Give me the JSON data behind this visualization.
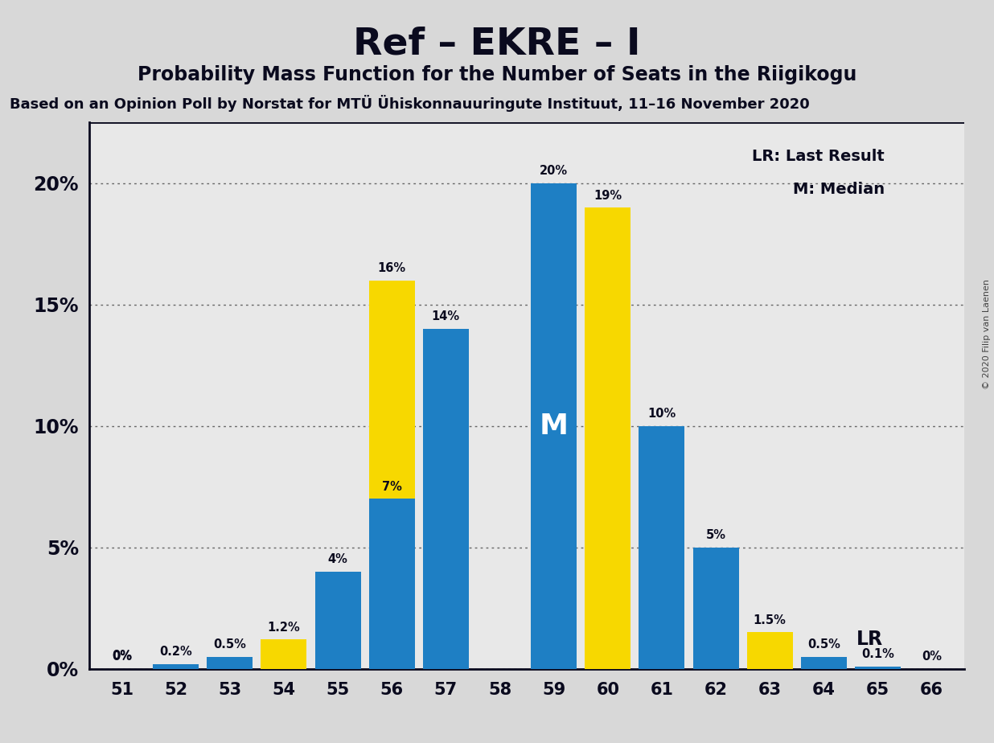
{
  "title": "Ref – EKRE – I",
  "subtitle": "Probability Mass Function for the Number of Seats in the Riigikogu",
  "source": "Based on an Opinion Poll by Norstat for MTÜ Ühiskonnauuringute Instituut, 11–16 November 2020",
  "copyright": "© 2020 Filip van Laenen",
  "seats": [
    51,
    52,
    53,
    54,
    55,
    56,
    57,
    58,
    59,
    60,
    61,
    62,
    63,
    64,
    65,
    66
  ],
  "blue_values": [
    0.0,
    0.2,
    0.5,
    0.0,
    4.0,
    7.0,
    14.0,
    0.0,
    20.0,
    0.0,
    10.0,
    5.0,
    0.0,
    0.5,
    0.1,
    0.0
  ],
  "yellow_values": [
    0.0,
    0.0,
    0.0,
    1.2,
    0.0,
    16.0,
    0.0,
    0.0,
    0.0,
    19.0,
    0.0,
    0.0,
    1.5,
    0.0,
    0.0,
    0.0
  ],
  "blue_labels": [
    "0%",
    "0.2%",
    "0.5%",
    "",
    "4%",
    "7%",
    "14%",
    "",
    "20%",
    "",
    "10%",
    "5%",
    "",
    "0.5%",
    "0.1%",
    "0%"
  ],
  "yellow_labels": [
    "",
    "",
    "",
    "1.2%",
    "",
    "16%",
    "",
    "",
    "",
    "19%",
    "",
    "",
    "1.5%",
    "",
    "",
    ""
  ],
  "median_index": 8,
  "bar_color_blue": "#1e7fc4",
  "bar_color_yellow": "#f7d800",
  "bg_color": "#d8d8d8",
  "plot_bg_color": "#e8e8e8",
  "title_fontsize": 34,
  "subtitle_fontsize": 17,
  "source_fontsize": 13,
  "ytick_values": [
    0,
    5,
    10,
    15,
    20
  ],
  "ylabel_ticks": [
    "0%",
    "5%",
    "10%",
    "15%",
    "20%"
  ],
  "ylim": [
    0,
    22.5
  ],
  "legend_lr": "LR: Last Result",
  "legend_m": "M: Median",
  "text_color": "#0a0a1e",
  "lr_label_index": 13
}
